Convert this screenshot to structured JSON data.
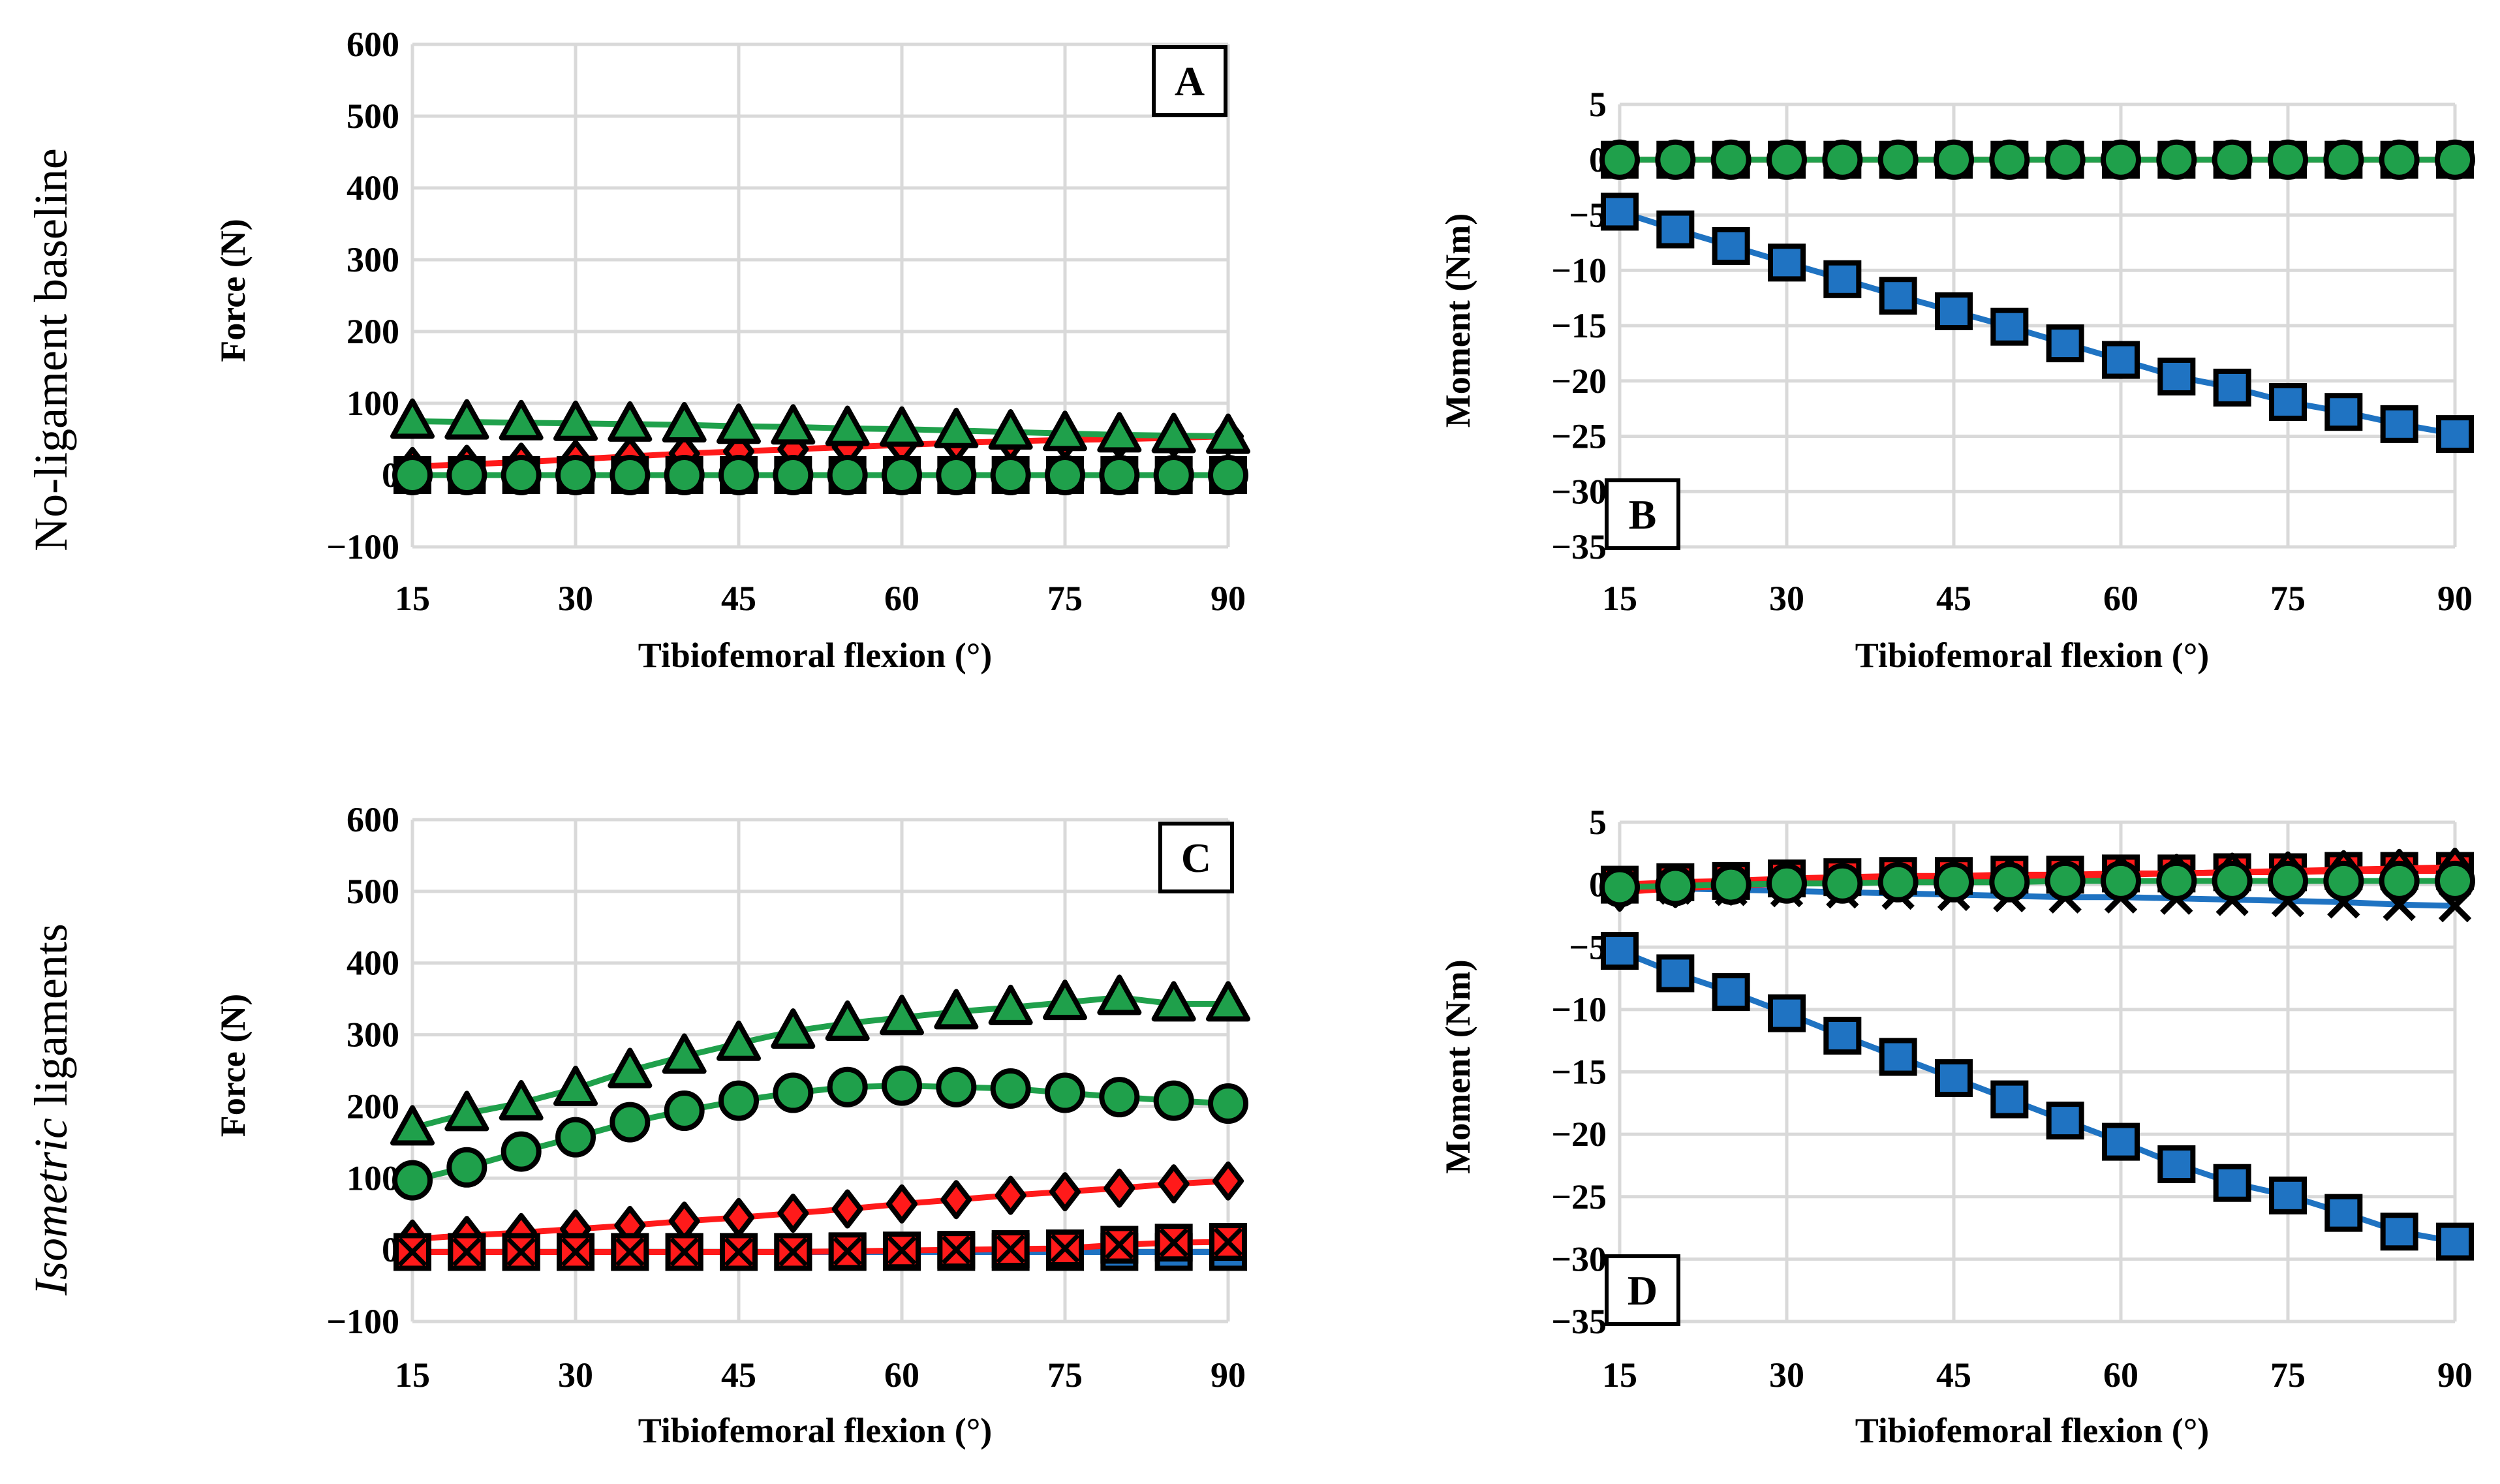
{
  "figure": {
    "row_labels": [
      {
        "plain": "No-ligament baseline",
        "italic": ""
      },
      {
        "italic": "Isometric",
        "plain": " ligaments"
      }
    ]
  },
  "colors": {
    "green": "#1fa04b",
    "red": "#ff1a1a",
    "blue": "#1f73c2",
    "grid": "#d9d9d9",
    "marker_stroke": "#000000"
  },
  "chart_data": [
    {
      "type": "line",
      "panel": "A",
      "xlabel": "Tibiofemoral flexion (°)",
      "ylabel": "Force (N)",
      "xlim": [
        15,
        90
      ],
      "ylim": [
        -100,
        600
      ],
      "x_ticks": [
        15,
        30,
        45,
        60,
        75,
        90
      ],
      "y_ticks": [
        -100,
        0,
        100,
        200,
        300,
        400,
        500,
        600
      ],
      "x_tick_labels": [
        "15",
        "30",
        "45",
        "60",
        "75",
        "90"
      ],
      "y_tick_labels": [
        "−100",
        "0",
        "100",
        "200",
        "300",
        "400",
        "500",
        "600"
      ],
      "x": [
        15,
        20,
        25,
        30,
        35,
        40,
        45,
        50,
        55,
        60,
        65,
        70,
        75,
        80,
        85,
        90
      ],
      "series": [
        {
          "name": "red-diamond",
          "color": "#ff1a1a",
          "marker": "diamond",
          "values": [
            12,
            15,
            18,
            22,
            26,
            30,
            33,
            36,
            39,
            42,
            45,
            47,
            49,
            50,
            52,
            54
          ]
        },
        {
          "name": "red-square",
          "color": "#ff1a1a",
          "marker": "square",
          "values": [
            0,
            0,
            0,
            0,
            0,
            0,
            0,
            0,
            0,
            0,
            0,
            0,
            0,
            0,
            0,
            0
          ]
        },
        {
          "name": "green-triangle",
          "color": "#1fa04b",
          "marker": "triangle",
          "values": [
            75,
            74,
            73,
            72,
            71,
            70,
            68,
            67,
            65,
            64,
            62,
            60,
            58,
            56,
            55,
            54
          ]
        },
        {
          "name": "green-circle",
          "color": "#1fa04b",
          "marker": "circle",
          "values": [
            0,
            0,
            0,
            0,
            0,
            0,
            0,
            0,
            0,
            0,
            0,
            0,
            0,
            0,
            0,
            0
          ]
        }
      ]
    },
    {
      "type": "line",
      "panel": "B",
      "xlabel": "Tibiofemoral flexion (°)",
      "ylabel": "Moment (Nm)",
      "xlim": [
        15,
        90
      ],
      "ylim": [
        -35,
        5
      ],
      "x_ticks": [
        15,
        30,
        45,
        60,
        75,
        90
      ],
      "y_ticks": [
        -35,
        -30,
        -25,
        -20,
        -15,
        -10,
        -5,
        0,
        5
      ],
      "x_tick_labels": [
        "15",
        "30",
        "45",
        "60",
        "75",
        "90"
      ],
      "y_tick_labels": [
        "−35",
        "−30",
        "−25",
        "−20",
        "−15",
        "−10",
        "−5",
        "0",
        "5"
      ],
      "x": [
        15,
        20,
        25,
        30,
        35,
        40,
        45,
        50,
        55,
        60,
        65,
        70,
        75,
        80,
        85,
        90
      ],
      "series": [
        {
          "name": "blue-square",
          "color": "#1f73c2",
          "marker": "square",
          "values": [
            -4.7,
            -6.3,
            -7.8,
            -9.3,
            -10.8,
            -12.3,
            -13.7,
            -15.1,
            -16.6,
            -18.1,
            -19.6,
            -20.6,
            -21.9,
            -22.8,
            -23.9,
            -24.8
          ]
        },
        {
          "name": "red-square",
          "color": "#ff1a1a",
          "marker": "square",
          "values": [
            0,
            0,
            0,
            0,
            0,
            0,
            0,
            0,
            0,
            0,
            0,
            0,
            0,
            0,
            0,
            0
          ]
        },
        {
          "name": "green-circle",
          "color": "#1fa04b",
          "marker": "circle",
          "values": [
            0,
            0,
            0,
            0,
            0,
            0,
            0,
            0,
            0,
            0,
            0,
            0,
            0,
            0,
            0,
            0
          ]
        }
      ]
    },
    {
      "type": "line",
      "panel": "C",
      "xlabel": "Tibiofemoral flexion (°)",
      "ylabel": "Force (N)",
      "xlim": [
        15,
        90
      ],
      "ylim": [
        -100,
        600
      ],
      "x_ticks": [
        15,
        30,
        45,
        60,
        75,
        90
      ],
      "y_ticks": [
        -100,
        0,
        100,
        200,
        300,
        400,
        500,
        600
      ],
      "x_tick_labels": [
        "15",
        "30",
        "45",
        "60",
        "75",
        "90"
      ],
      "y_tick_labels": [
        "−100",
        "0",
        "100",
        "200",
        "300",
        "400",
        "500",
        "600"
      ],
      "x": [
        15,
        20,
        25,
        30,
        35,
        40,
        45,
        50,
        55,
        60,
        65,
        70,
        75,
        80,
        85,
        90
      ],
      "series": [
        {
          "name": "green-triangle",
          "color": "#1fa04b",
          "marker": "triangle",
          "values": [
            170,
            190,
            205,
            225,
            250,
            270,
            288,
            305,
            316,
            324,
            332,
            338,
            345,
            352,
            343,
            343
          ]
        },
        {
          "name": "green-circle",
          "color": "#1fa04b",
          "marker": "circle",
          "values": [
            97,
            115,
            137,
            157,
            178,
            194,
            208,
            219,
            227,
            229,
            227,
            225,
            219,
            213,
            208,
            204
          ]
        },
        {
          "name": "red-diamond",
          "color": "#ff1a1a",
          "marker": "diamond",
          "values": [
            15,
            20,
            24,
            29,
            34,
            40,
            45,
            51,
            57,
            64,
            70,
            76,
            81,
            86,
            92,
            96
          ]
        },
        {
          "name": "blue-square",
          "color": "#1f73c2",
          "marker": "square",
          "values": [
            -3,
            -3,
            -3,
            -3,
            -3,
            -3,
            -3,
            -3,
            -3,
            -3,
            -3,
            -3,
            -3,
            -3,
            -3,
            -3
          ]
        },
        {
          "name": "red-square-x",
          "color": "#ff1a1a",
          "marker": "squarex",
          "values": [
            -3,
            -3,
            -3,
            -3,
            -3,
            -3,
            -3,
            -3,
            -2,
            -1,
            0,
            1,
            2,
            7,
            10,
            11
          ]
        }
      ]
    },
    {
      "type": "line",
      "panel": "D",
      "xlabel": "Tibiofemoral flexion (°)",
      "ylabel": "Moment (Nm)",
      "xlim": [
        15,
        90
      ],
      "ylim": [
        -35,
        5
      ],
      "x_ticks": [
        15,
        30,
        45,
        60,
        75,
        90
      ],
      "y_ticks": [
        -35,
        -30,
        -25,
        -20,
        -15,
        -10,
        -5,
        0,
        5
      ],
      "x_tick_labels": [
        "15",
        "30",
        "45",
        "60",
        "75",
        "90"
      ],
      "y_tick_labels": [
        "−35",
        "−30",
        "−25",
        "−20",
        "−15",
        "−10",
        "−5",
        "0",
        "5"
      ],
      "x": [
        15,
        20,
        25,
        30,
        35,
        40,
        45,
        50,
        55,
        60,
        65,
        70,
        75,
        80,
        85,
        90
      ],
      "series": [
        {
          "name": "blue-square",
          "color": "#1f73c2",
          "marker": "square",
          "values": [
            -5.3,
            -7.1,
            -8.6,
            -10.3,
            -12.1,
            -13.8,
            -15.5,
            -17.2,
            -18.9,
            -20.6,
            -22.4,
            -23.9,
            -24.9,
            -26.3,
            -27.8,
            -28.6
          ]
        },
        {
          "name": "blue-x",
          "color": "#1f73c2",
          "marker": "xmark",
          "values": [
            -0.1,
            -0.3,
            -0.4,
            -0.5,
            -0.6,
            -0.7,
            -0.8,
            -0.9,
            -1.0,
            -1.0,
            -1.1,
            -1.2,
            -1.3,
            -1.4,
            -1.6,
            -1.7
          ]
        },
        {
          "name": "red-square",
          "color": "#ff1a1a",
          "marker": "square",
          "values": [
            0,
            0.2,
            0.3,
            0.5,
            0.6,
            0.7,
            0.7,
            0.8,
            0.8,
            0.9,
            0.9,
            1.0,
            1.0,
            1.1,
            1.1,
            1.1
          ]
        },
        {
          "name": "red-diamond",
          "color": "#ff1a1a",
          "marker": "diamond",
          "values": [
            -0.6,
            -0.3,
            -0.1,
            0.1,
            0.3,
            0.4,
            0.5,
            0.6,
            0.7,
            0.8,
            0.9,
            1.0,
            1.1,
            1.2,
            1.3,
            1.4
          ]
        },
        {
          "name": "green-circle",
          "color": "#1fa04b",
          "marker": "circle",
          "values": [
            -0.2,
            -0.1,
            0,
            0.1,
            0.1,
            0.2,
            0.2,
            0.2,
            0.3,
            0.3,
            0.3,
            0.3,
            0.3,
            0.3,
            0.3,
            0.3
          ]
        }
      ]
    }
  ]
}
